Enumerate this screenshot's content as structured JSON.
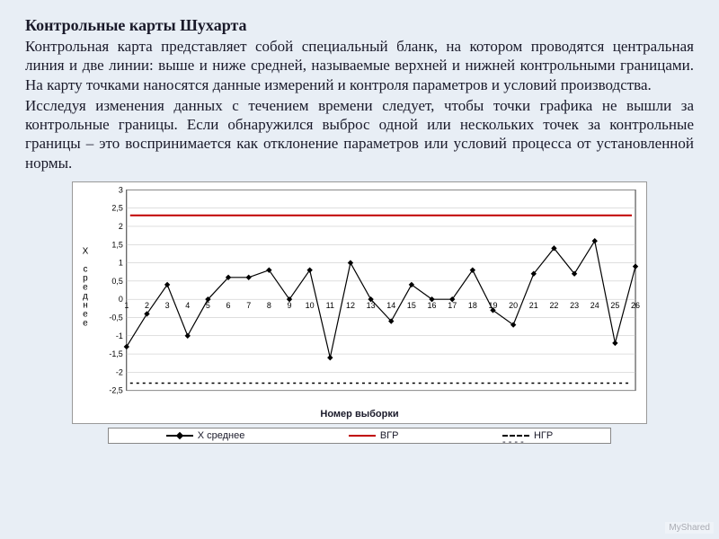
{
  "title": "Контрольные карты Шухарта",
  "para1": "Контрольная карта представляет собой специальный бланк, на котором проводятся центральная линия и две линии: выше и ниже средней, называемые верхней и нижней контрольными границами. На карту точками наносятся данные измерений и контроля параметров и условий производства.",
  "para2": "Исследуя изменения данных с течением времени следует, чтобы точки графика не вышли за контрольные границы. Если обнаружился выброс одной или нескольких точек за контрольные границы – это воспринимается как отклонение параметров или условий процесса от установленной нормы.",
  "chart": {
    "type": "line",
    "x_values": [
      1,
      2,
      3,
      4,
      5,
      6,
      7,
      8,
      9,
      10,
      11,
      12,
      13,
      14,
      15,
      16,
      17,
      18,
      19,
      20,
      21,
      22,
      23,
      24,
      25,
      26
    ],
    "series_x_mean": [
      -1.3,
      -0.4,
      0.4,
      -1.0,
      0.0,
      0.6,
      0.6,
      0.8,
      0.0,
      0.8,
      -1.6,
      1.0,
      0.0,
      -0.6,
      0.4,
      0.0,
      0.0,
      0.8,
      -0.3,
      -0.7,
      0.7,
      1.4,
      0.7,
      1.6,
      -1.2,
      0.9
    ],
    "ucl_value": 2.3,
    "lcl_value": -2.3,
    "ylim": [
      -2.5,
      3.0
    ],
    "yticks": [
      -2.5,
      -2,
      -1.5,
      -1,
      -0.5,
      0,
      0.5,
      1,
      1.5,
      2,
      2.5,
      3
    ],
    "ylabel": "X среднее",
    "xlabel": "Номер выборки",
    "colors": {
      "background": "#ffffff",
      "grid": "#bfbfbf",
      "axis": "#000000",
      "series": "#000000",
      "ucl": "#c00000",
      "lcl": "#000000"
    },
    "marker": "diamond",
    "line_width": 1.2,
    "ucl_style": "solid",
    "lcl_style": "dashed",
    "tick_fontsize": 9,
    "label_fontsize": 10,
    "xlabel_fontsize": 11,
    "xlabel_weight": "bold"
  },
  "legend": {
    "item1": "X среднее",
    "item2": "ВГР",
    "item3": "НГР"
  },
  "watermark": "MyShared"
}
